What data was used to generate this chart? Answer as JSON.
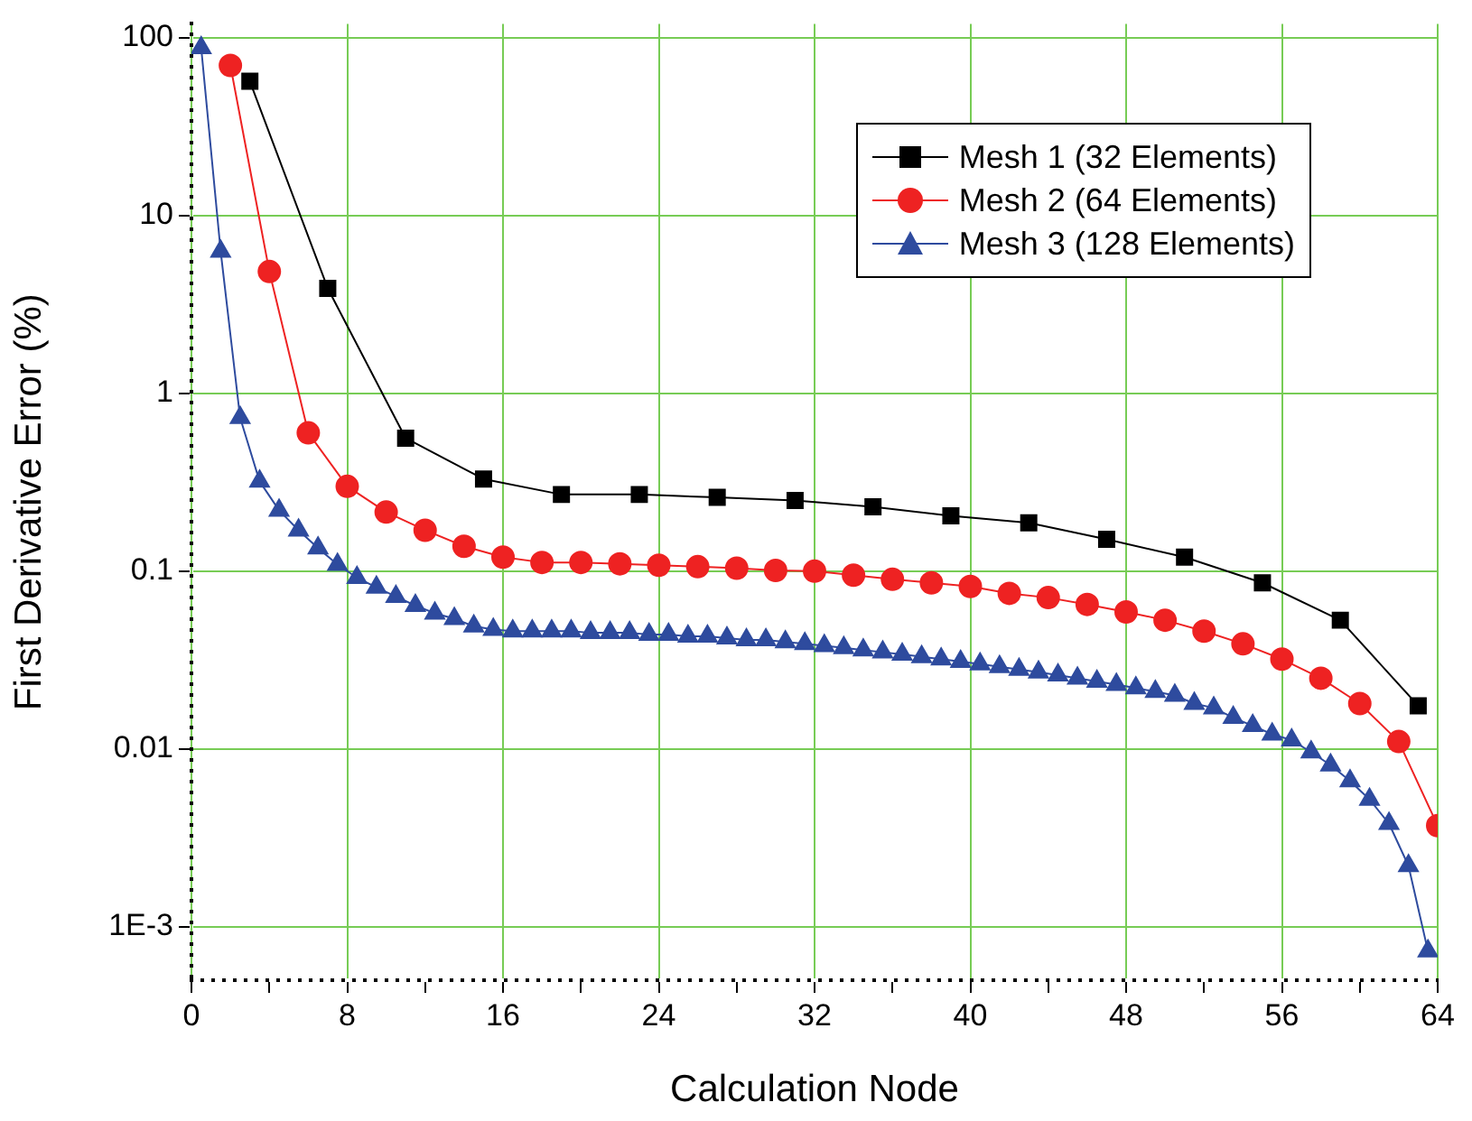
{
  "chart_data": {
    "type": "line",
    "xlabel": "Calculation Node",
    "ylabel": "First Derivative Error (%)",
    "log": "y",
    "grid": true,
    "legend": "top right",
    "xlim": [
      0,
      64
    ],
    "xticks": [
      0,
      {
        "value": 4,
        "label": null
      },
      8,
      {
        "value": 12,
        "label": null
      },
      16,
      {
        "value": 20,
        "label": null
      },
      24,
      {
        "value": 28,
        "label": null
      },
      32,
      {
        "value": 36,
        "label": null
      },
      40,
      {
        "value": 44,
        "label": null
      },
      48,
      {
        "value": 52,
        "label": null
      },
      56,
      {
        "value": 60,
        "label": null
      },
      64
    ],
    "ylim": [
      0.0005,
      120
    ],
    "yticks": [
      {
        "value": 0.001,
        "label": "1E-3"
      },
      0.01,
      0.1,
      1,
      10,
      100
    ],
    "series": [
      {
        "name": "Mesh 1 (32 Elements)",
        "color": "#000000",
        "marker": "square",
        "x": [
          3,
          7,
          11,
          15,
          19,
          23,
          27,
          31,
          35,
          39,
          43,
          47,
          51,
          55,
          59,
          63
        ],
        "values": [
          57,
          3.9,
          0.56,
          0.33,
          0.27,
          0.27,
          0.26,
          0.25,
          0.23,
          0.205,
          0.187,
          0.151,
          0.12,
          0.086,
          0.053,
          0.0175
        ]
      },
      {
        "name": "Mesh 2 (64 Elements)",
        "color": "#ee2222",
        "marker": "circle",
        "x": [
          2,
          4,
          6,
          8,
          10,
          12,
          14,
          16,
          18,
          20,
          22,
          24,
          26,
          28,
          30,
          32,
          34,
          36,
          38,
          40,
          42,
          44,
          46,
          48,
          50,
          52,
          54,
          56,
          58,
          60,
          62,
          64
        ],
        "values": [
          70,
          4.85,
          0.6,
          0.3,
          0.215,
          0.17,
          0.138,
          0.12,
          0.112,
          0.112,
          0.11,
          0.108,
          0.106,
          0.104,
          0.101,
          0.1,
          0.095,
          0.09,
          0.086,
          0.082,
          0.075,
          0.071,
          0.065,
          0.059,
          0.053,
          0.046,
          0.039,
          0.032,
          0.025,
          0.018,
          0.011,
          0.0037
        ]
      },
      {
        "name": "Mesh 3 (128 Elements)",
        "color": "#2e4b9e",
        "marker": "triangle",
        "x": [
          0.5,
          1.5,
          2.5,
          3.5,
          4.5,
          5.5,
          6.5,
          7.5,
          8.5,
          9.5,
          10.5,
          11.5,
          12.5,
          13.5,
          14.5,
          15.5,
          16.5,
          17.5,
          18.5,
          19.5,
          20.5,
          21.5,
          22.5,
          23.5,
          24.5,
          25.5,
          26.5,
          27.5,
          28.5,
          29.5,
          30.5,
          31.5,
          32.5,
          33.5,
          34.5,
          35.5,
          36.5,
          37.5,
          38.5,
          39.5,
          40.5,
          41.5,
          42.5,
          43.5,
          44.5,
          45.5,
          46.5,
          47.5,
          48.5,
          49.5,
          50.5,
          51.5,
          52.5,
          53.5,
          54.5,
          55.5,
          56.5,
          57.5,
          58.5,
          59.5,
          60.5,
          61.5,
          62.5,
          63.5
        ],
        "values": [
          88,
          6.3,
          0.73,
          0.32,
          0.22,
          0.17,
          0.135,
          0.109,
          0.092,
          0.081,
          0.072,
          0.064,
          0.058,
          0.054,
          0.049,
          0.047,
          0.046,
          0.046,
          0.046,
          0.046,
          0.045,
          0.045,
          0.045,
          0.044,
          0.044,
          0.043,
          0.043,
          0.042,
          0.041,
          0.041,
          0.04,
          0.039,
          0.038,
          0.037,
          0.036,
          0.035,
          0.034,
          0.033,
          0.032,
          0.031,
          0.03,
          0.029,
          0.028,
          0.027,
          0.026,
          0.025,
          0.024,
          0.023,
          0.022,
          0.021,
          0.02,
          0.018,
          0.017,
          0.015,
          0.0135,
          0.0121,
          0.0112,
          0.0096,
          0.0081,
          0.0066,
          0.0052,
          0.0038,
          0.0022,
          0.00073
        ]
      }
    ]
  }
}
